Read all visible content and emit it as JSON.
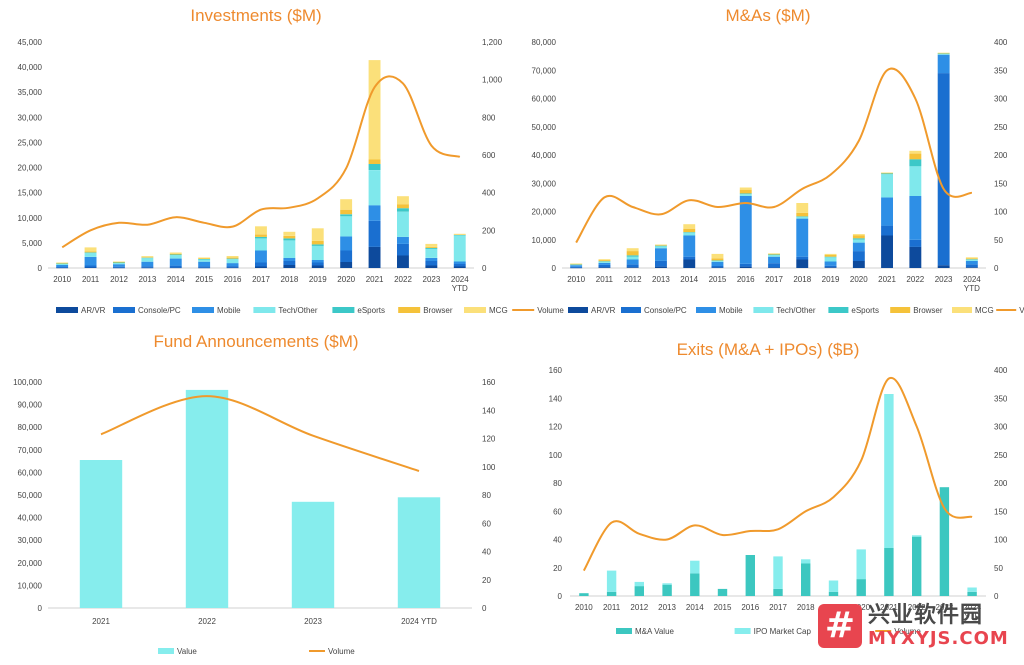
{
  "colors": {
    "ar_vr": "#0d4a9c",
    "console_pc": "#1a6fd0",
    "mobile": "#2e8fe6",
    "tech_other": "#7fe8ec",
    "esports": "#3cc8c8",
    "browser": "#f5c23a",
    "mcg": "#fbe07a",
    "volume": "#f09a2c",
    "title": "#ee8a2e",
    "fund_value": "#86eded",
    "ma_value": "#3cc7c0",
    "ipo_cap": "#86eded"
  },
  "watermark": {
    "icon": "hash-badge-icon",
    "cn": "兴业软件园",
    "url": "MYXYJS.COM"
  },
  "chart_data": [
    {
      "id": "investments",
      "type": "bar",
      "stacked": true,
      "title": "Investments ($M)",
      "categories": [
        "2010",
        "2011",
        "2012",
        "2013",
        "2014",
        "2015",
        "2016",
        "2017",
        "2018",
        "2019",
        "2020",
        "2021",
        "2022",
        "2023",
        "2024 YTD"
      ],
      "ylim": [
        0,
        45000
      ],
      "y_ticks": [
        "0",
        "5,000",
        "10,000",
        "15,000",
        "20,000",
        "25,000",
        "30,000",
        "35,000",
        "40,000",
        "45,000"
      ],
      "y2lim": [
        0,
        1200
      ],
      "y2_ticks": [
        "0",
        "200",
        "400",
        "600",
        "800",
        "1,000",
        "1,200"
      ],
      "legend_position": "bottom",
      "series": [
        {
          "name": "AR/VR",
          "color_key": "ar_vr",
          "values": [
            50,
            100,
            50,
            60,
            80,
            50,
            80,
            300,
            600,
            500,
            1200,
            4200,
            2500,
            500,
            300
          ]
        },
        {
          "name": "Console/PC",
          "color_key": "console_pc",
          "values": [
            150,
            400,
            200,
            300,
            400,
            300,
            300,
            800,
            800,
            600,
            2300,
            5200,
            2300,
            900,
            500
          ]
        },
        {
          "name": "Mobile",
          "color_key": "mobile",
          "values": [
            400,
            1700,
            500,
            900,
            1400,
            900,
            600,
            2400,
            600,
            500,
            2800,
            3100,
            1400,
            600,
            500
          ]
        },
        {
          "name": "Tech/Other",
          "color_key": "tech_other",
          "values": [
            300,
            800,
            300,
            700,
            700,
            500,
            800,
            2400,
            3500,
            2800,
            4000,
            7000,
            5000,
            1800,
            5200
          ]
        },
        {
          "name": "eSports",
          "color_key": "esports",
          "values": [
            50,
            100,
            50,
            100,
            100,
            50,
            100,
            300,
            400,
            300,
            400,
            1200,
            700,
            200,
            100
          ]
        },
        {
          "name": "Browser",
          "color_key": "browser",
          "values": [
            50,
            200,
            100,
            100,
            100,
            100,
            200,
            500,
            500,
            700,
            900,
            900,
            800,
            200,
            100
          ]
        },
        {
          "name": "MCG",
          "color_key": "mcg",
          "values": [
            100,
            800,
            100,
            200,
            300,
            200,
            300,
            1600,
            800,
            2500,
            2100,
            19800,
            1600,
            600,
            100
          ]
        },
        {
          "name": "Volume",
          "type": "line",
          "axis": "y2",
          "color_key": "volume",
          "values": [
            110,
            200,
            240,
            230,
            270,
            240,
            220,
            310,
            320,
            370,
            530,
            960,
            980,
            650,
            590
          ]
        }
      ]
    },
    {
      "id": "mas",
      "type": "bar",
      "stacked": true,
      "title": "M&As ($M)",
      "categories": [
        "2010",
        "2011",
        "2012",
        "2013",
        "2014",
        "2015",
        "2016",
        "2017",
        "2018",
        "2019",
        "2020",
        "2021",
        "2022",
        "2023",
        "2024 YTD"
      ],
      "ylim": [
        0,
        80000
      ],
      "y_ticks": [
        "0",
        "10,000",
        "20,000",
        "30,000",
        "40,000",
        "50,000",
        "60,000",
        "70,000",
        "80,000"
      ],
      "y2lim": [
        0,
        400
      ],
      "y2_ticks": [
        "0",
        "50",
        "100",
        "150",
        "200",
        "250",
        "300",
        "350",
        "400"
      ],
      "legend_position": "bottom",
      "series": [
        {
          "name": "AR/VR",
          "color_key": "ar_vr",
          "values": [
            100,
            300,
            300,
            500,
            3000,
            200,
            500,
            200,
            3000,
            300,
            2500,
            11500,
            7500,
            1000,
            300
          ]
        },
        {
          "name": "Console/PC",
          "color_key": "console_pc",
          "values": [
            300,
            800,
            1000,
            2000,
            1000,
            500,
            1000,
            1500,
            1000,
            500,
            3500,
            3500,
            2500,
            68000,
            1000
          ]
        },
        {
          "name": "Mobile",
          "color_key": "mobile",
          "values": [
            600,
            700,
            1700,
            4500,
            7500,
            1500,
            24000,
            2300,
            13500,
            1500,
            3000,
            10000,
            15500,
            6500,
            1200
          ]
        },
        {
          "name": "Tech/Other",
          "color_key": "tech_other",
          "values": [
            200,
            500,
            1000,
            700,
            1000,
            400,
            600,
            700,
            600,
            1500,
            1000,
            8200,
            10500,
            400,
            500
          ]
        },
        {
          "name": "eSports",
          "color_key": "esports",
          "values": [
            100,
            100,
            500,
            200,
            200,
            100,
            300,
            100,
            200,
            200,
            500,
            300,
            2500,
            100,
            100
          ]
        },
        {
          "name": "Browser",
          "color_key": "browser",
          "values": [
            200,
            400,
            1500,
            300,
            1200,
            700,
            1300,
            200,
            1200,
            600,
            1000,
            200,
            2000,
            100,
            300
          ]
        },
        {
          "name": "MCG",
          "color_key": "mcg",
          "values": [
            100,
            300,
            1000,
            100,
            1600,
            1600,
            800,
            200,
            3500,
            400,
            500,
            100,
            1000,
            100,
            400
          ]
        },
        {
          "name": "Volume",
          "type": "line",
          "axis": "y2",
          "color_key": "volume",
          "values": [
            45,
            125,
            108,
            95,
            120,
            108,
            115,
            108,
            140,
            165,
            225,
            350,
            300,
            140,
            133
          ]
        }
      ]
    },
    {
      "id": "fund_announcements",
      "type": "bar",
      "title": "Fund Announcements ($M)",
      "categories": [
        "2021",
        "2022",
        "2023",
        "2024 YTD"
      ],
      "ylim": [
        0,
        100000
      ],
      "y_ticks": [
        "0",
        "10,000",
        "20,000",
        "30,000",
        "40,000",
        "50,000",
        "60,000",
        "70,000",
        "80,000",
        "90,000",
        "100,000"
      ],
      "y2lim": [
        0,
        160
      ],
      "y2_ticks": [
        "0",
        "20",
        "40",
        "60",
        "80",
        "100",
        "120",
        "140",
        "160"
      ],
      "legend_position": "bottom",
      "series": [
        {
          "name": "Value",
          "color_key": "fund_value",
          "values": [
            65500,
            96500,
            47000,
            49000
          ]
        },
        {
          "name": "Volume",
          "type": "line",
          "axis": "y2",
          "color_key": "volume",
          "values": [
            123,
            150,
            122,
            97
          ]
        }
      ]
    },
    {
      "id": "exits",
      "type": "bar",
      "stacked": true,
      "title": "Exits (M&A + IPOs) ($B)",
      "categories": [
        "2010",
        "2011",
        "2012",
        "2013",
        "2014",
        "2015",
        "2016",
        "2017",
        "2018",
        "2019",
        "2020",
        "2021",
        "2022",
        "2023",
        "2024 YTD"
      ],
      "ylim": [
        0,
        160
      ],
      "y_ticks": [
        "0",
        "20",
        "40",
        "60",
        "80",
        "100",
        "120",
        "140",
        "160"
      ],
      "y2lim": [
        0,
        400
      ],
      "y2_ticks": [
        "0",
        "50",
        "100",
        "150",
        "200",
        "250",
        "300",
        "350",
        "400"
      ],
      "legend_position": "bottom",
      "series": [
        {
          "name": "M&A Value",
          "color_key": "ma_value",
          "values": [
            2,
            3,
            7,
            8,
            16,
            5,
            29,
            5,
            23,
            3,
            12,
            34,
            42,
            77,
            3
          ]
        },
        {
          "name": "IPO Market Cap",
          "color_key": "ipo_cap",
          "values": [
            0,
            15,
            3,
            1,
            9,
            0,
            0,
            23,
            3,
            8,
            21,
            109,
            1,
            0,
            3
          ]
        },
        {
          "name": "Volume",
          "type": "line",
          "axis": "y2",
          "color_key": "volume",
          "values": [
            45,
            130,
            110,
            100,
            125,
            108,
            115,
            118,
            150,
            175,
            240,
            385,
            300,
            155,
            140
          ]
        }
      ]
    }
  ]
}
